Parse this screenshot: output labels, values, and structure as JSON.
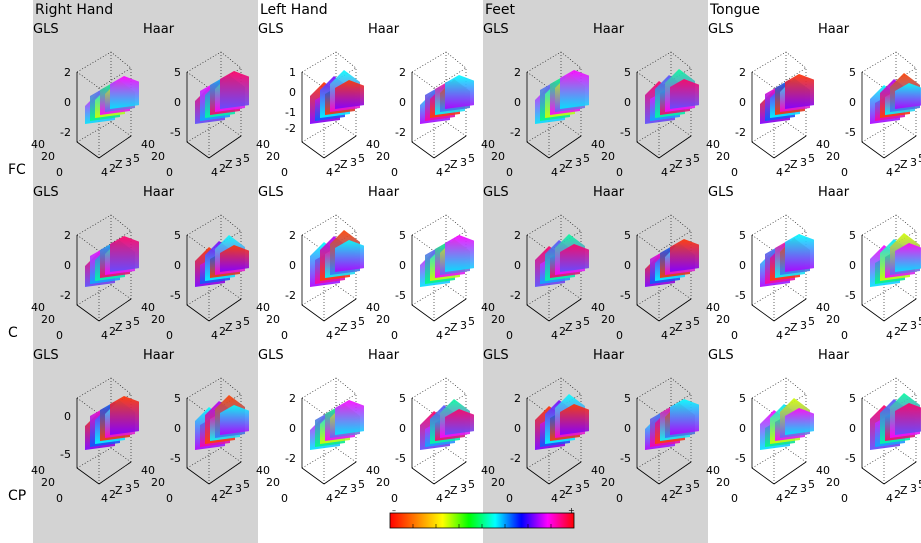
{
  "columns": [
    {
      "title": "Right Hand",
      "shaded": true
    },
    {
      "title": "Left Hand",
      "shaded": false
    },
    {
      "title": "Feet",
      "shaded": true
    },
    {
      "title": "Tongue",
      "shaded": false
    }
  ],
  "rows": [
    "FC",
    "C",
    "CP"
  ],
  "methods": [
    "GLS",
    "Haar"
  ],
  "axis": {
    "x_ticks": [
      "0",
      "20",
      "40"
    ],
    "y_ticks": [
      "4",
      "2",
      "Z",
      "3",
      "5"
    ]
  },
  "z_ticks": [
    [
      [
        "2",
        "0",
        "-2"
      ],
      [
        "5",
        "0",
        "-5"
      ],
      [
        "1",
        "0",
        "-1",
        "-2"
      ],
      [
        "2",
        "0",
        "-2"
      ],
      [
        "2",
        "0",
        "-2"
      ],
      [
        "5",
        "0",
        "-5"
      ],
      [
        "2",
        "0",
        "-2"
      ],
      [
        "5",
        "0",
        "-5"
      ]
    ],
    [
      [
        "2",
        "0",
        "-2"
      ],
      [
        "5",
        "0",
        "-5"
      ],
      [
        "2",
        "0",
        "-2"
      ],
      [
        "5",
        "0",
        "-5"
      ],
      [
        "2",
        "0",
        "-2"
      ],
      [
        "5",
        "0",
        "-5"
      ],
      [
        "5",
        "0",
        "-5"
      ],
      [
        "5",
        "0",
        "-5"
      ]
    ],
    [
      [
        "0",
        "-5"
      ],
      [
        "5",
        "0",
        "-5"
      ],
      [
        "2",
        "0",
        "-2"
      ],
      [
        "5",
        "0",
        "-5"
      ],
      [
        "2",
        "0",
        "-2"
      ],
      [
        "5",
        "0",
        "-5"
      ],
      [
        "5",
        "0",
        "-5"
      ],
      [
        "5",
        "0",
        "-5"
      ]
    ]
  ],
  "colorbar": {
    "min_label": "–",
    "max_label": "+",
    "colors": [
      "#ff0000",
      "#ff8000",
      "#ffff00",
      "#00ff00",
      "#00ffff",
      "#0000ff",
      "#ff00ff",
      "#ff0000"
    ]
  }
}
